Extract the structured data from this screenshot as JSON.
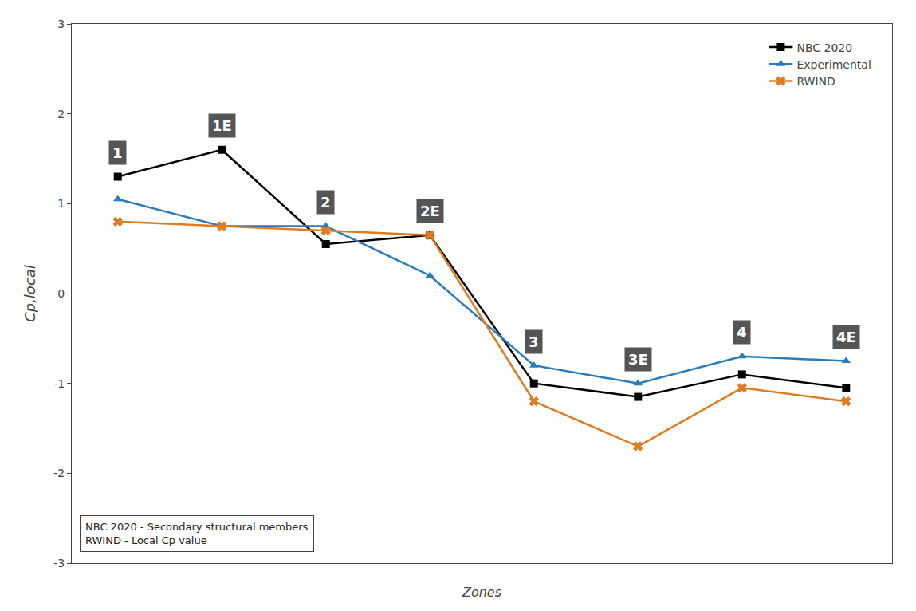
{
  "chart_data": {
    "type": "line",
    "xlabel": "Zones",
    "ylabel": "Cp,local",
    "categories": [
      "1",
      "1E",
      "2",
      "2E",
      "3",
      "3E",
      "4",
      "4E"
    ],
    "series": [
      {
        "name": "NBC 2020",
        "color": "#000000",
        "marker": "square",
        "values": [
          1.3,
          1.6,
          0.55,
          0.65,
          -1.0,
          -1.15,
          -0.9,
          -1.05
        ]
      },
      {
        "name": "Experimental",
        "color": "#2B7BBA",
        "marker": "triangle-up",
        "values": [
          1.05,
          0.75,
          0.75,
          0.2,
          -0.8,
          -1.0,
          -0.7,
          -0.75
        ]
      },
      {
        "name": "RWIND",
        "color": "#E07B20",
        "marker": "x",
        "values": [
          0.8,
          0.75,
          0.7,
          0.65,
          -1.2,
          -1.7,
          -1.05,
          -1.2
        ]
      }
    ],
    "ylim": [
      -3.0,
      3.0
    ],
    "yticks": [
      -3,
      -2,
      -1,
      0,
      1,
      2,
      3
    ],
    "tick_labels": "y",
    "grid": false,
    "legend": "upper right",
    "annotations": [
      "NBC 2020 - Secondary structural members",
      "RWIND - Local Cp value"
    ]
  }
}
